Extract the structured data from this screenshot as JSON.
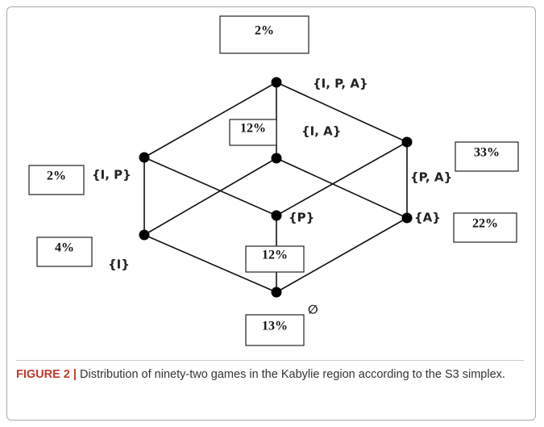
{
  "nodes": [
    {
      "label": "{I, P, A}",
      "share": "2%"
    },
    {
      "label": "{I, A}",
      "share": "12%"
    },
    {
      "label": "{I, P}",
      "share": "2%"
    },
    {
      "label": "{P, A}",
      "share": "33%"
    },
    {
      "label": "{P}",
      "share": "12%"
    },
    {
      "label": "{A}",
      "share": "22%"
    },
    {
      "label": "{I}",
      "share": "4%"
    },
    {
      "label": "∅",
      "share": "13%"
    }
  ],
  "caption": {
    "label": "FIGURE 2 |",
    "text": "Distribution of ninety-two games in the Kabylie region according to the S3 simplex."
  }
}
